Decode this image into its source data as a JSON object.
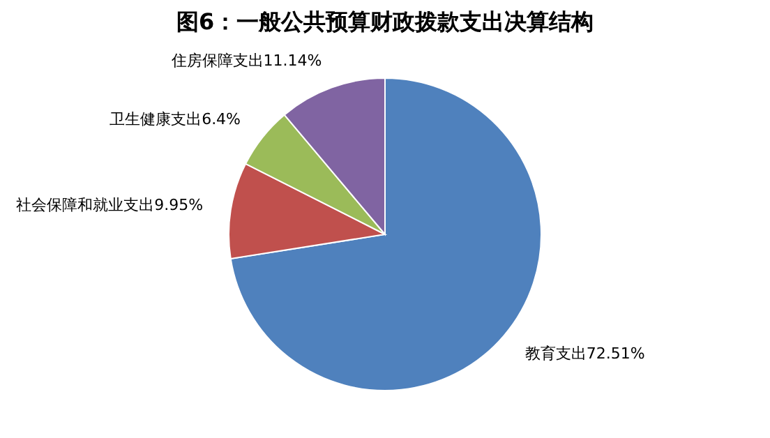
{
  "chart_data": {
    "type": "pie",
    "title": "图6：一般公共预算财政拨款支出决算结构",
    "categories": [
      "教育支出",
      "社会保障和就业支出",
      "卫生健康支出",
      "住房保障支出"
    ],
    "values": [
      72.51,
      9.95,
      6.4,
      11.14
    ],
    "value_labels": [
      "72.51%",
      "9.95%",
      "6.4%",
      "11.14%"
    ],
    "colors": [
      "#4f81bd",
      "#c0504d",
      "#9bbb59",
      "#8064a2"
    ],
    "legend": false
  }
}
